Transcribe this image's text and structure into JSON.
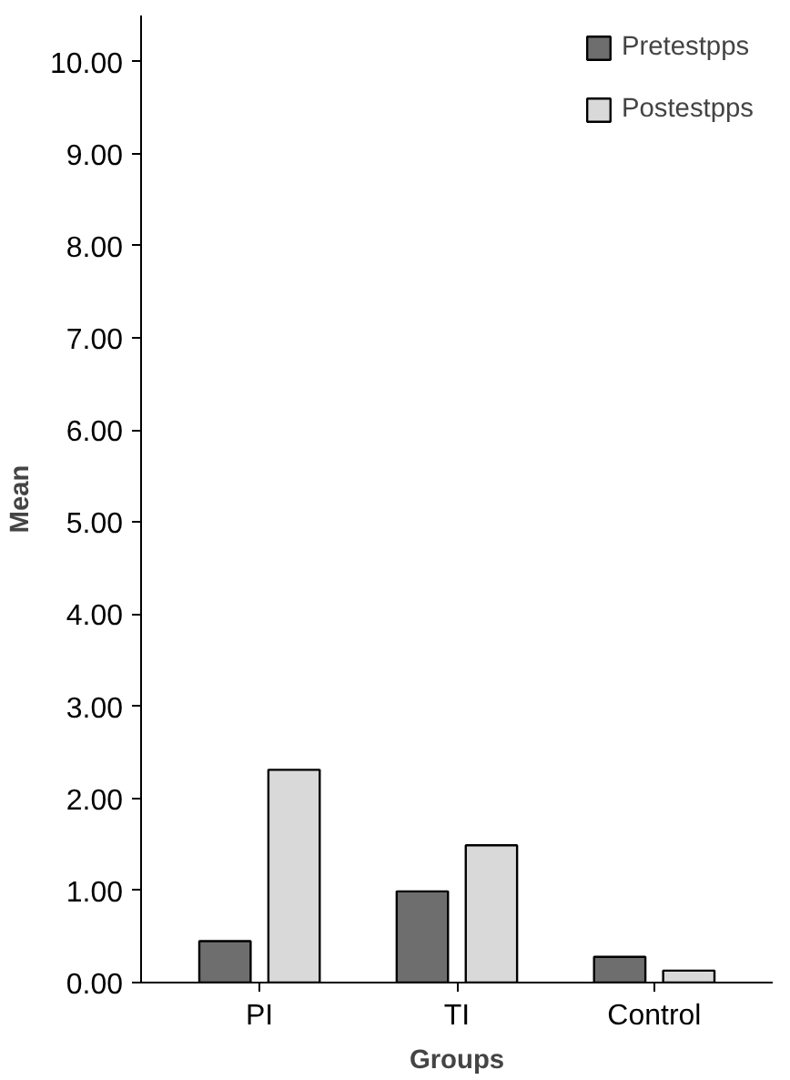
{
  "chart_data": {
    "type": "bar",
    "xlabel": "Groups",
    "ylabel": "Mean",
    "categories": [
      "PI",
      "TI",
      "Control"
    ],
    "series": [
      {
        "name": "Pretestpps",
        "color": "#6e6e6e",
        "values": [
          0.45,
          0.99,
          0.28
        ]
      },
      {
        "name": "Postestpps",
        "color": "#d9d9d9",
        "values": [
          2.31,
          1.49,
          0.13
        ]
      }
    ],
    "ylim": [
      0,
      10.5
    ],
    "yticks": [
      {
        "value": 0,
        "label": "0.00"
      },
      {
        "value": 1,
        "label": "1.00"
      },
      {
        "value": 2,
        "label": "2.00"
      },
      {
        "value": 3,
        "label": "3.00"
      },
      {
        "value": 4,
        "label": "4.00"
      },
      {
        "value": 5,
        "label": "5.00"
      },
      {
        "value": 6,
        "label": "6.00"
      },
      {
        "value": 7,
        "label": "7.00"
      },
      {
        "value": 8,
        "label": "8.00"
      },
      {
        "value": 9,
        "label": "9.00"
      },
      {
        "value": 10,
        "label": "10.00"
      }
    ],
    "grid": false,
    "legend": "top right"
  }
}
